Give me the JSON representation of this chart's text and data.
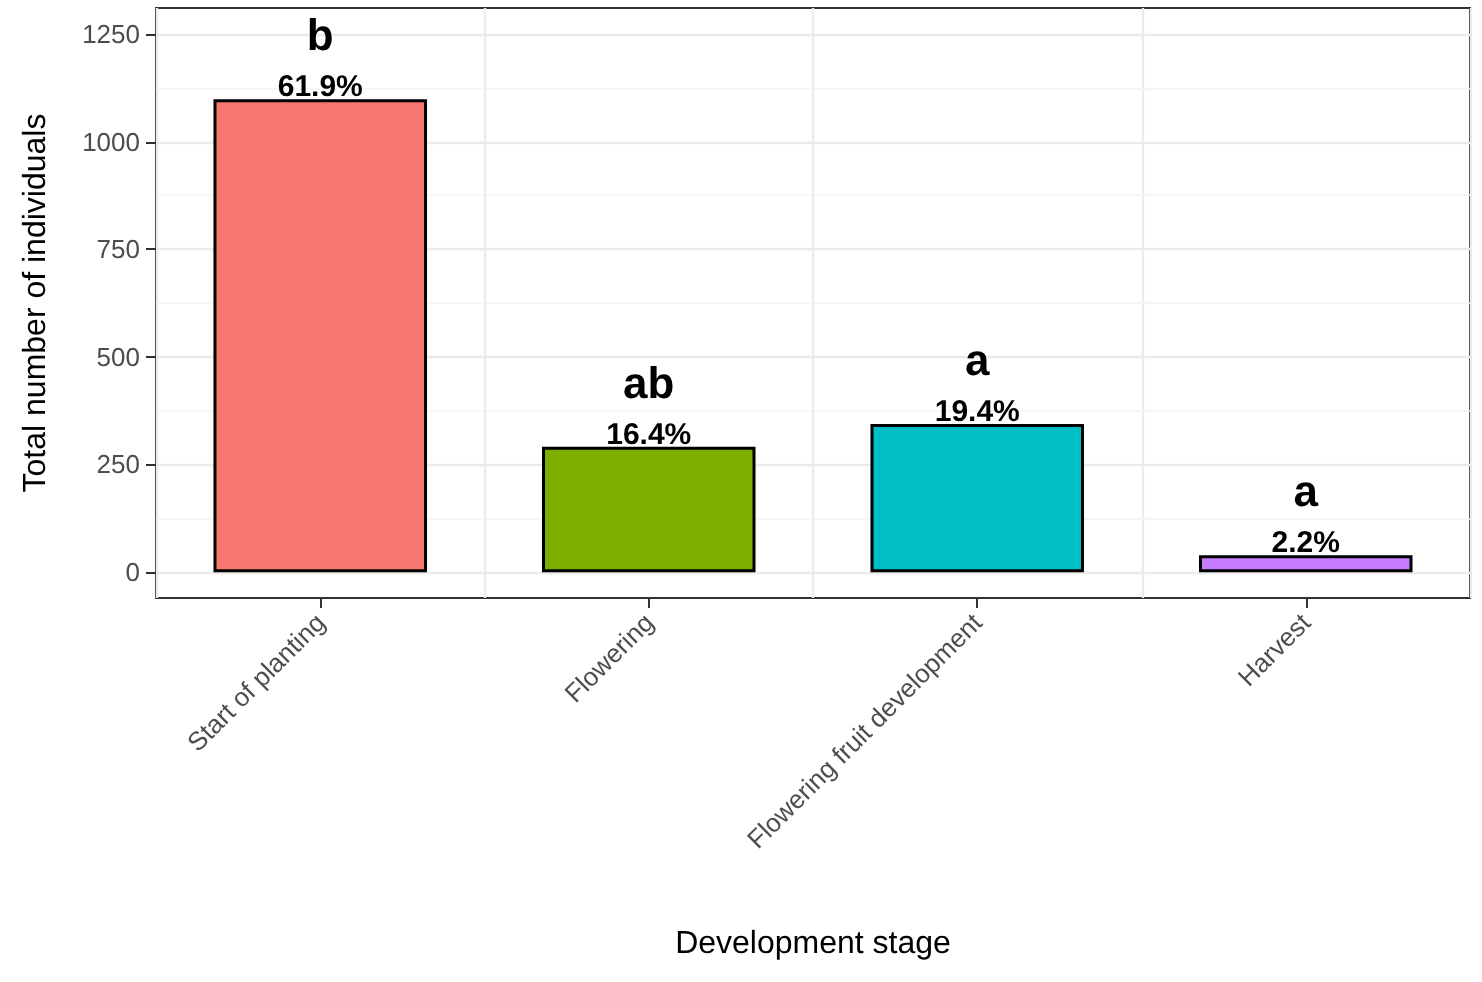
{
  "chart_data": {
    "type": "bar",
    "xlabel": "Development stage",
    "ylabel": "Total number of individuals",
    "categories": [
      "Start of planting",
      "Flowering",
      "Flowering fruit development",
      "Harvest"
    ],
    "values": [
      1098,
      291,
      344,
      39
    ],
    "colors": [
      "#f8766d",
      "#7cae00",
      "#00bfc4",
      "#c77cff"
    ],
    "annotations": [
      {
        "text": "61.9%",
        "x": "Start of planting",
        "y": 1098
      },
      {
        "text": "b",
        "x": "Start of planting",
        "y": 1098
      },
      {
        "text": "16.4%",
        "x": "Flowering",
        "y": 291
      },
      {
        "text": "ab",
        "x": "Flowering",
        "y": 291
      },
      {
        "text": "19.4%",
        "x": "Flowering fruit development",
        "y": 344
      },
      {
        "text": "a",
        "x": "Flowering fruit development",
        "y": 344
      },
      {
        "text": "2.2%",
        "x": "Harvest",
        "y": 39
      },
      {
        "text": "a",
        "x": "Harvest",
        "y": 39
      }
    ],
    "ylim": [
      -60,
      1310
    ],
    "yticks": [
      0,
      250,
      500,
      750,
      1000,
      1250
    ],
    "grid": true
  }
}
